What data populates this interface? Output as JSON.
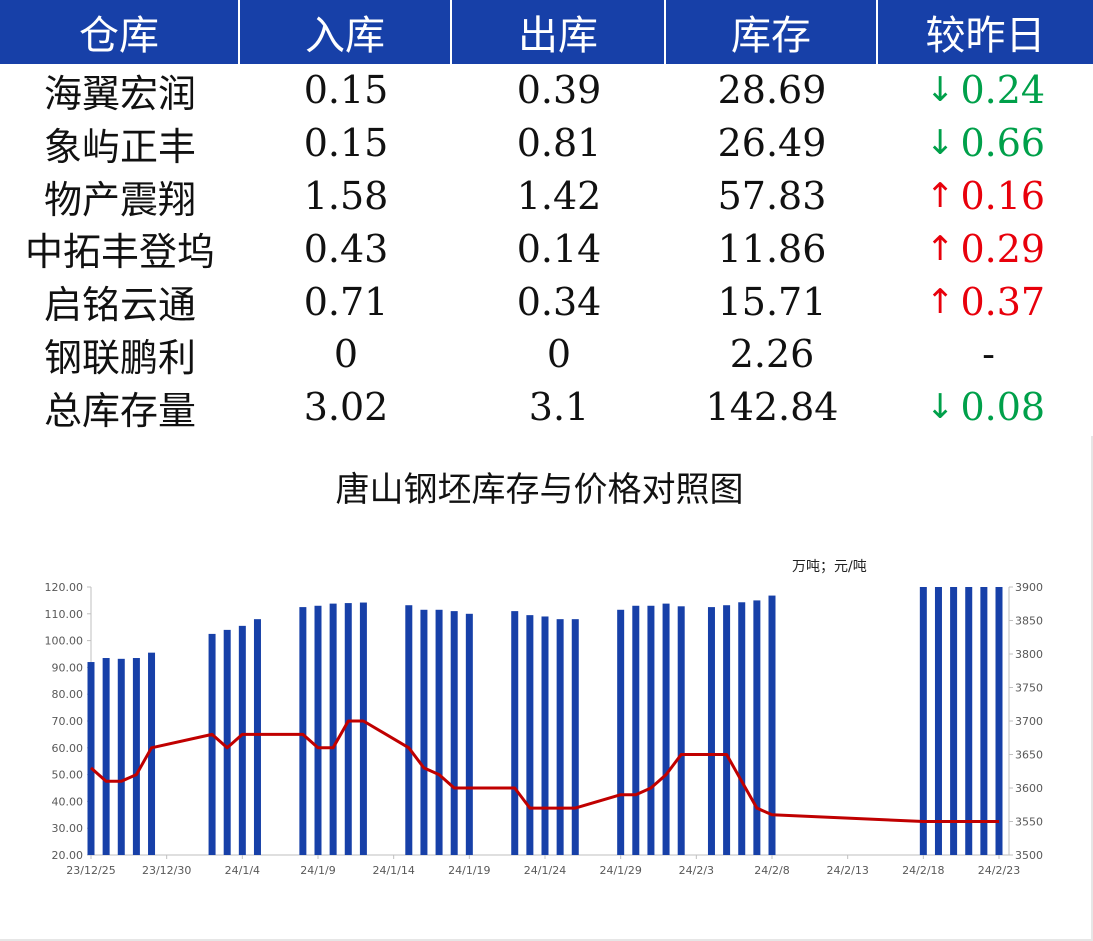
{
  "table": {
    "headers": [
      "仓库",
      "入库",
      "出库",
      "库存",
      "较昨日"
    ],
    "rows": [
      {
        "name": "海翼宏润",
        "in": "0.15",
        "out": "0.39",
        "stock": "28.69",
        "dir": "down",
        "arrow": "↓",
        "change": "0.24"
      },
      {
        "name": "象屿正丰",
        "in": "0.15",
        "out": "0.81",
        "stock": "26.49",
        "dir": "down",
        "arrow": "↓",
        "change": "0.66"
      },
      {
        "name": "物产震翔",
        "in": "1.58",
        "out": "1.42",
        "stock": "57.83",
        "dir": "up",
        "arrow": "↑",
        "change": "0.16"
      },
      {
        "name": "中拓丰登坞",
        "in": "0.43",
        "out": "0.14",
        "stock": "11.86",
        "dir": "up",
        "arrow": "↑",
        "change": "0.29"
      },
      {
        "name": "启铭云通",
        "in": "0.71",
        "out": "0.34",
        "stock": "15.71",
        "dir": "up",
        "arrow": "↑",
        "change": "0.37"
      },
      {
        "name": "钢联鹏利",
        "in": "0",
        "out": "0",
        "stock": "2.26",
        "dir": "none",
        "arrow": "",
        "change": "-"
      },
      {
        "name": "总库存量",
        "in": "3.02",
        "out": "3.1",
        "stock": "142.84",
        "dir": "down",
        "arrow": "↓",
        "change": "0.08"
      }
    ],
    "colors": {
      "header_bg": "#1740a8",
      "up": "#e8000b",
      "down": "#00a04a"
    }
  },
  "chart": {
    "title": "唐山钢坯库存与价格对照图",
    "unit_label": "万吨；元/吨"
  },
  "chart_data": {
    "type": "bar",
    "y_left_ticks": [
      "20.00",
      "30.00",
      "40.00",
      "50.00",
      "60.00",
      "70.00",
      "80.00",
      "90.00",
      "100.00",
      "110.00",
      "120.00"
    ],
    "y_right_ticks": [
      "3500",
      "3550",
      "3600",
      "3650",
      "3700",
      "3750",
      "3800",
      "3850",
      "3900"
    ],
    "ylim": [
      20,
      120
    ],
    "y2lim": [
      3500,
      3900
    ],
    "x_tick_labels": [
      {
        "label": "23/12/25",
        "day": 0
      },
      {
        "label": "23/12/30",
        "day": 5
      },
      {
        "label": "24/1/4",
        "day": 10
      },
      {
        "label": "24/1/9",
        "day": 15
      },
      {
        "label": "24/1/14",
        "day": 20
      },
      {
        "label": "24/1/19",
        "day": 25
      },
      {
        "label": "24/1/24",
        "day": 30
      },
      {
        "label": "24/1/29",
        "day": 35
      },
      {
        "label": "24/2/3",
        "day": 40
      },
      {
        "label": "24/2/8",
        "day": 45
      },
      {
        "label": "24/2/13",
        "day": 50
      },
      {
        "label": "24/2/18",
        "day": 55
      },
      {
        "label": "24/2/23",
        "day": 60
      }
    ],
    "series": [
      {
        "type": "bar",
        "color": "#1740a8",
        "points": [
          [
            0,
            92
          ],
          [
            1,
            93.5
          ],
          [
            2,
            93.2
          ],
          [
            3,
            93.5
          ],
          [
            4,
            95.5
          ],
          [
            8,
            102.5
          ],
          [
            9,
            104
          ],
          [
            10,
            105.5
          ],
          [
            11,
            108
          ],
          [
            14,
            112.5
          ],
          [
            15,
            113
          ],
          [
            16,
            113.8
          ],
          [
            17,
            114
          ],
          [
            18,
            114.2
          ],
          [
            21,
            113.2
          ],
          [
            22,
            111.5
          ],
          [
            23,
            111.5
          ],
          [
            24,
            111
          ],
          [
            25,
            110
          ],
          [
            28,
            111
          ],
          [
            29,
            109.5
          ],
          [
            30,
            109
          ],
          [
            31,
            108
          ],
          [
            32,
            108
          ],
          [
            35,
            111.5
          ],
          [
            36,
            113
          ],
          [
            37,
            113
          ],
          [
            38,
            113.8
          ],
          [
            39,
            112.8
          ],
          [
            41,
            112.5
          ],
          [
            42,
            113.2
          ],
          [
            43,
            114.3
          ],
          [
            44,
            115
          ],
          [
            45,
            116.8
          ],
          [
            55,
            120
          ],
          [
            56,
            120
          ],
          [
            57,
            120
          ],
          [
            58,
            120
          ],
          [
            59,
            120
          ],
          [
            60,
            120
          ]
        ]
      },
      {
        "type": "line",
        "axis": "right",
        "color": "#c00000",
        "points": [
          [
            0,
            3630
          ],
          [
            1,
            3610
          ],
          [
            2,
            3610
          ],
          [
            3,
            3620
          ],
          [
            4,
            3660
          ],
          [
            8,
            3680
          ],
          [
            9,
            3660
          ],
          [
            10,
            3680
          ],
          [
            11,
            3680
          ],
          [
            14,
            3680
          ],
          [
            15,
            3660
          ],
          [
            16,
            3660
          ],
          [
            17,
            3700
          ],
          [
            18,
            3700
          ],
          [
            21,
            3660
          ],
          [
            22,
            3630
          ],
          [
            23,
            3620
          ],
          [
            24,
            3600
          ],
          [
            25,
            3600
          ],
          [
            28,
            3600
          ],
          [
            29,
            3570
          ],
          [
            30,
            3570
          ],
          [
            31,
            3570
          ],
          [
            32,
            3570
          ],
          [
            35,
            3590
          ],
          [
            36,
            3590
          ],
          [
            37,
            3600
          ],
          [
            38,
            3620
          ],
          [
            39,
            3650
          ],
          [
            41,
            3650
          ],
          [
            42,
            3650
          ],
          [
            43,
            3610
          ],
          [
            44,
            3570
          ],
          [
            45,
            3560
          ],
          [
            55,
            3550
          ],
          [
            56,
            3550
          ],
          [
            57,
            3550
          ],
          [
            58,
            3550
          ],
          [
            59,
            3550
          ],
          [
            60,
            3550
          ]
        ]
      }
    ]
  }
}
